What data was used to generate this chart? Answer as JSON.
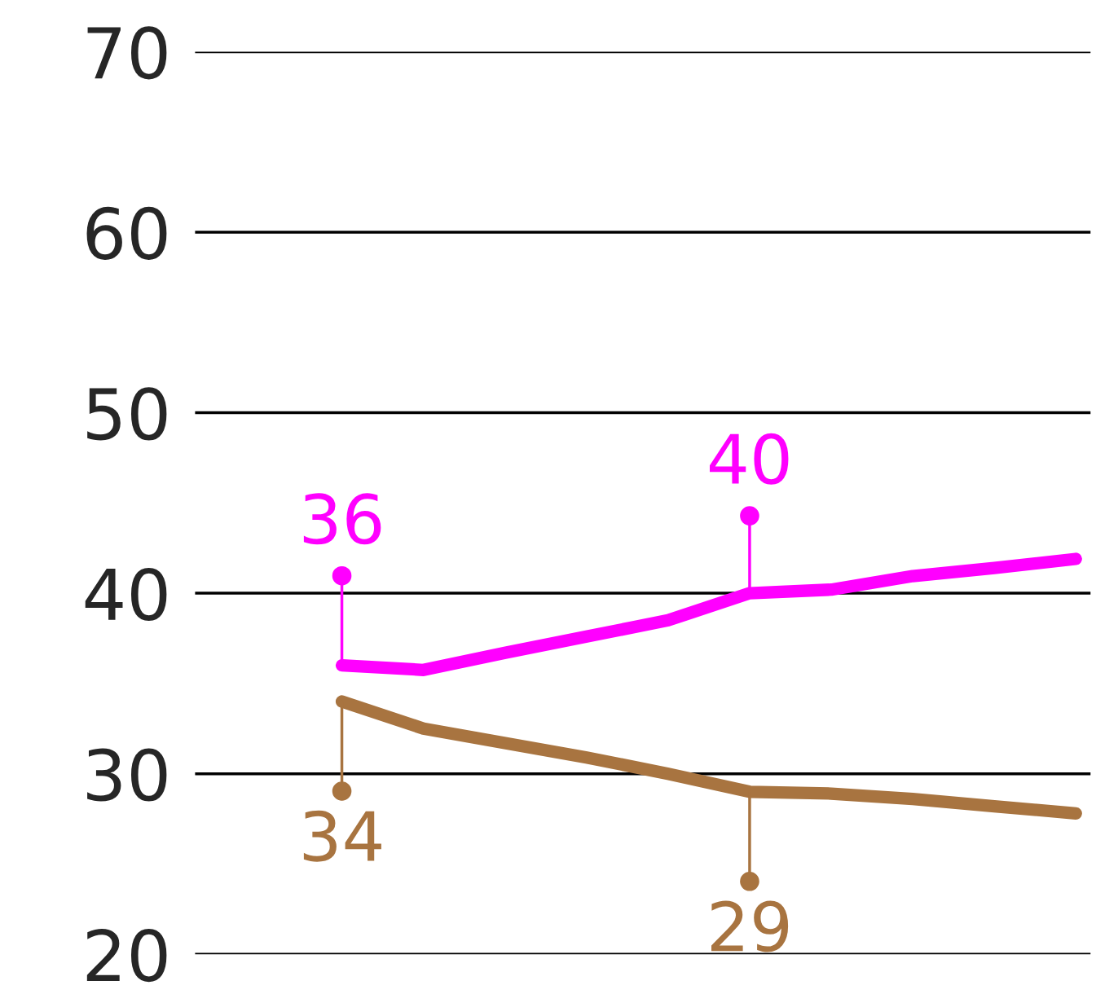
{
  "chart_data": {
    "type": "line",
    "categories": [
      null,
      null,
      null,
      null,
      null,
      null,
      null,
      null,
      null,
      null
    ],
    "series": [
      {
        "color": "#ff00ff",
        "values": [
          36,
          35.75,
          36.7,
          37.6,
          38.5,
          40,
          40.2,
          40.95,
          41.4,
          41.9
        ],
        "value_labels": [
          "36",
          null,
          null,
          null,
          null,
          "40",
          null,
          null,
          null,
          null
        ]
      },
      {
        "color": "#a87440",
        "values": [
          34,
          32.5,
          31.7,
          30.9,
          30.0,
          29,
          28.9,
          28.6,
          28.2,
          27.8
        ],
        "value_labels": [
          "34",
          null,
          null,
          null,
          null,
          "29",
          null,
          null,
          null,
          null
        ]
      }
    ],
    "ylim": [
      20,
      70
    ],
    "yticks": [
      20,
      30,
      40,
      50,
      60,
      70
    ],
    "grid": "y",
    "tick_labels": "y"
  }
}
